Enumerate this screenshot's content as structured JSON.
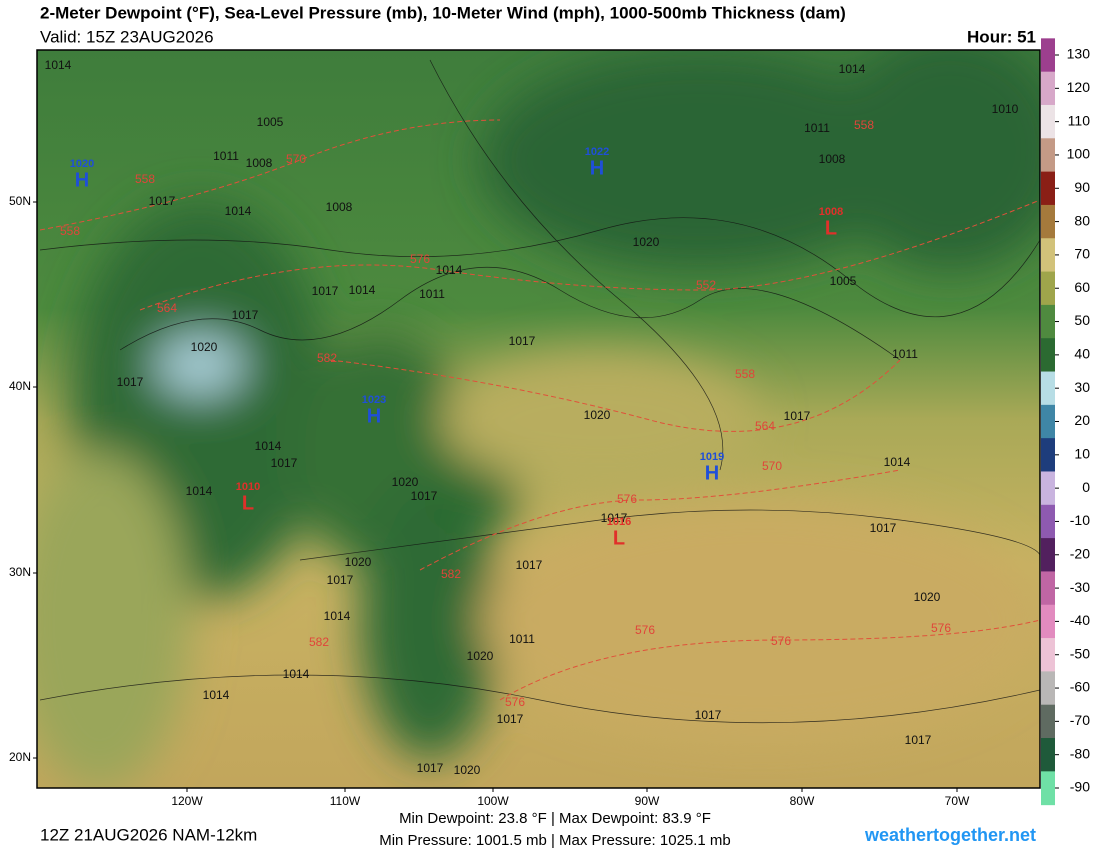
{
  "header": {
    "title": "2-Meter Dewpoint (°F), Sea-Level Pressure (mb), 10-Meter Wind (mph), 1000-500mb Thickness (dam)",
    "valid": "Valid: 15Z 23AUG2026",
    "hour": "Hour: 51"
  },
  "map": {
    "pressure_labels": [
      1014,
      1005,
      1011,
      1008,
      1017,
      1014,
      1008,
      1014,
      1010,
      1011,
      1008,
      1020,
      1005,
      1014,
      1011,
      1014,
      1017,
      1017,
      1020,
      1017,
      1017,
      1011,
      1020,
      1017,
      1014,
      1017,
      1014,
      1020,
      1017,
      1017,
      1017,
      1020,
      1017,
      1017,
      1014,
      1014,
      1020,
      1011,
      1020,
      1014,
      1014,
      1017,
      1017,
      1017,
      1017,
      1020
    ],
    "highs_lows": [
      {
        "letter": "H",
        "value": "1022"
      },
      {
        "letter": "H",
        "value": "1020"
      },
      {
        "letter": "H",
        "value": "1023"
      },
      {
        "letter": "H",
        "value": "1019"
      },
      {
        "letter": "L",
        "value": "1008"
      },
      {
        "letter": "L",
        "value": "1010"
      },
      {
        "letter": "L",
        "value": "1016"
      }
    ],
    "thickness_labels": [
      558,
      570,
      558,
      558,
      576,
      564,
      552,
      582,
      558,
      564,
      570,
      576,
      582,
      576,
      576,
      576,
      582,
      576
    ],
    "lat_labels": [
      "50N",
      "40N",
      "30N",
      "20N"
    ],
    "lon_labels": [
      "120W",
      "110W",
      "100W",
      "90W",
      "80W",
      "70W"
    ]
  },
  "colorbar": {
    "ticks": [
      130,
      120,
      110,
      100,
      90,
      80,
      70,
      60,
      50,
      40,
      30,
      20,
      10,
      0,
      -10,
      -20,
      -30,
      -40,
      -50,
      -60,
      -70,
      -80,
      -90
    ],
    "colors": [
      "#9c3f8e",
      "#d7a8c9",
      "#ece3e6",
      "#c49a86",
      "#8a1f16",
      "#a57a3c",
      "#d2c27a",
      "#9fa54b",
      "#4f8a3f",
      "#2b6a31",
      "#b7dde5",
      "#3f86a6",
      "#1e3d7c",
      "#c9b4df",
      "#8e5ab0",
      "#52205e",
      "#c066a4",
      "#e28bbf",
      "#edc3d6",
      "#b9b7b6",
      "#5f6b61",
      "#1f5a3a",
      "#6fe0a6"
    ]
  },
  "footer": {
    "run": "12Z 21AUG2026 NAM-12km",
    "stats": [
      "Min Dewpoint: 23.8 °F | Max Dewpoint: 83.9 °F",
      "Min Pressure: 1001.5 mb | Max Pressure: 1025.1 mb"
    ],
    "site": "weathertogether.net"
  }
}
